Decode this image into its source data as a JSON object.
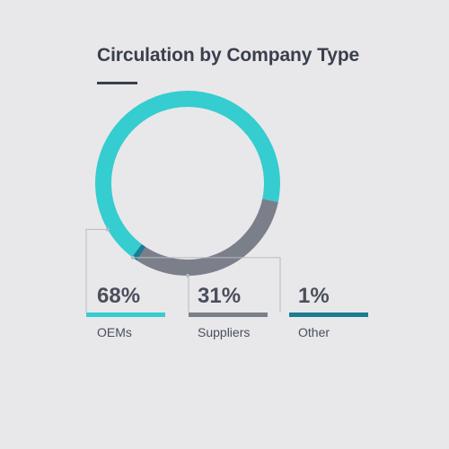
{
  "title": "Circulation by Company Type",
  "chart_data": {
    "type": "pie",
    "style": "donut",
    "title": "Circulation by Company Type",
    "categories": [
      "OEMs",
      "Suppliers",
      "Other"
    ],
    "values": [
      68,
      31,
      1
    ],
    "labels": [
      "68%",
      "31%",
      "1%"
    ],
    "colors": [
      "#35cdcf",
      "#7b7f89",
      "#1c7c91"
    ]
  }
}
